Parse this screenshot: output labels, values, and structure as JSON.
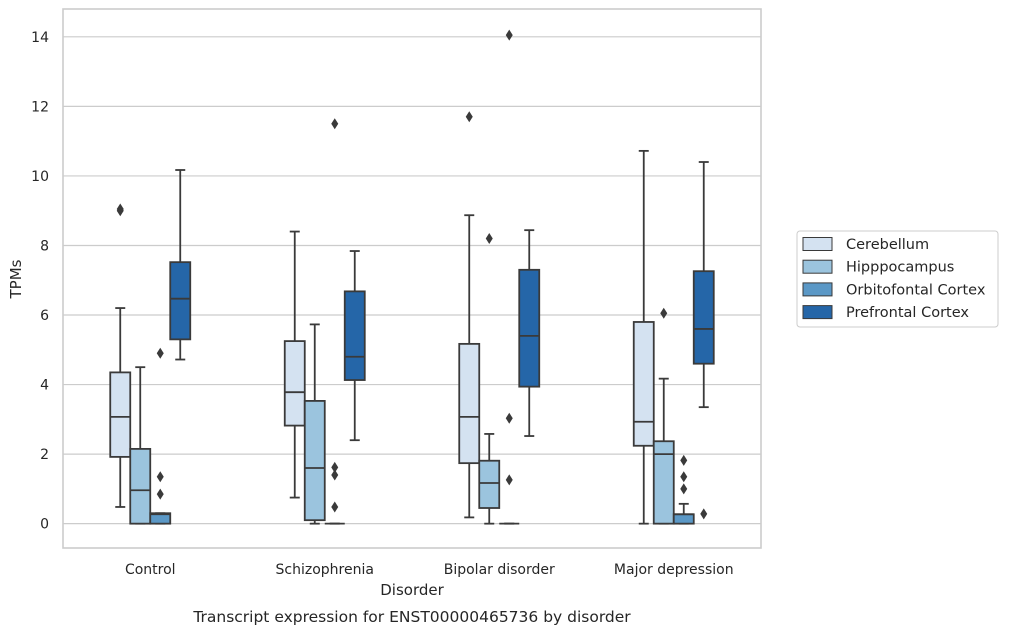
{
  "caption": "Transcript expression for ENST00000465736 by disorder",
  "chart_data": {
    "type": "box",
    "xlabel": "Disorder",
    "ylabel": "TPMs",
    "ylim": [
      -0.7,
      14.8
    ],
    "yticks": [
      0,
      2,
      4,
      6,
      8,
      10,
      12,
      14
    ],
    "grid": "horizontal",
    "legend_position": "right",
    "categories": [
      "Control",
      "Schizophrenia",
      "Bipolar disorder",
      "Major depression"
    ],
    "series": [
      {
        "name": "Cerebellum",
        "color": "#d4e2f1",
        "boxes": [
          {
            "whislo": 0.48,
            "q1": 1.92,
            "med": 3.07,
            "q3": 4.35,
            "whishi": 6.2,
            "fliers": [
              9.0,
              9.05
            ]
          },
          {
            "whislo": 0.75,
            "q1": 2.82,
            "med": 3.78,
            "q3": 5.25,
            "whishi": 8.4,
            "fliers": []
          },
          {
            "whislo": 0.18,
            "q1": 1.74,
            "med": 3.07,
            "q3": 5.17,
            "whishi": 8.87,
            "fliers": [
              11.7
            ]
          },
          {
            "whislo": 0.0,
            "q1": 2.24,
            "med": 2.93,
            "q3": 5.8,
            "whishi": 10.72,
            "fliers": []
          }
        ]
      },
      {
        "name": "Hipppocampus",
        "color": "#9bc4de",
        "boxes": [
          {
            "whislo": 0.0,
            "q1": 0.0,
            "med": 0.96,
            "q3": 2.15,
            "whishi": 4.5,
            "fliers": []
          },
          {
            "whislo": 0.0,
            "q1": 0.1,
            "med": 1.6,
            "q3": 3.53,
            "whishi": 5.73,
            "fliers": []
          },
          {
            "whislo": 0.0,
            "q1": 0.45,
            "med": 1.17,
            "q3": 1.81,
            "whishi": 2.58,
            "fliers": [
              8.2
            ]
          },
          {
            "whislo": 0.0,
            "q1": 0.0,
            "med": 2.0,
            "q3": 2.37,
            "whishi": 4.17,
            "fliers": [
              6.05
            ]
          }
        ]
      },
      {
        "name": "Orbitofontal Cortex",
        "color": "#5b98c6",
        "boxes": [
          {
            "whislo": 0.0,
            "q1": 0.0,
            "med": 0.27,
            "q3": 0.3,
            "whishi": 0.3,
            "fliers": [
              0.85,
              1.35,
              4.9
            ]
          },
          {
            "whislo": 0.0,
            "q1": 0.0,
            "med": 0.0,
            "q3": 0.0,
            "whishi": 0.0,
            "fliers": [
              0.48,
              1.4,
              1.62,
              11.5
            ]
          },
          {
            "whislo": 0.0,
            "q1": 0.0,
            "med": 0.0,
            "q3": 0.0,
            "whishi": 0.0,
            "fliers": [
              1.26,
              3.03,
              14.05
            ]
          },
          {
            "whislo": 0.0,
            "q1": 0.0,
            "med": 0.27,
            "q3": 0.27,
            "whishi": 0.57,
            "fliers": [
              1.0,
              1.35,
              1.82
            ]
          }
        ]
      },
      {
        "name": "Prefrontal Cortex",
        "color": "#2566a8",
        "boxes": [
          {
            "whislo": 4.72,
            "q1": 5.3,
            "med": 6.47,
            "q3": 7.52,
            "whishi": 10.17,
            "fliers": []
          },
          {
            "whislo": 2.4,
            "q1": 4.13,
            "med": 4.8,
            "q3": 6.68,
            "whishi": 7.84,
            "fliers": []
          },
          {
            "whislo": 2.52,
            "q1": 3.94,
            "med": 5.4,
            "q3": 7.3,
            "whishi": 8.44,
            "fliers": []
          },
          {
            "whislo": 3.35,
            "q1": 4.6,
            "med": 5.6,
            "q3": 7.26,
            "whishi": 10.4,
            "fliers": [
              0.28
            ]
          }
        ]
      }
    ]
  }
}
